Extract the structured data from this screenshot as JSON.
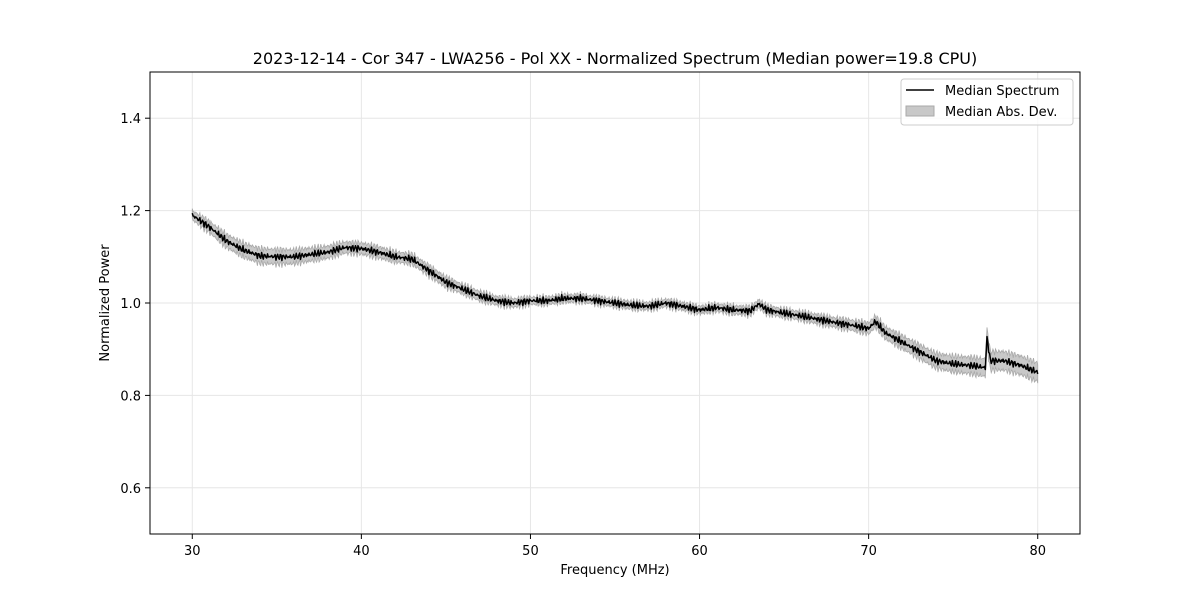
{
  "chart_data": {
    "type": "line",
    "title": "2023-12-14 - Cor 347 - LWA256 - Pol XX - Normalized Spectrum (Median power=19.8 CPU)",
    "xlabel": "Frequency (MHz)",
    "ylabel": "Normalized Power",
    "xlim": [
      27.5,
      82.5
    ],
    "ylim": [
      0.5,
      1.5
    ],
    "xticks": [
      30,
      40,
      50,
      60,
      70,
      80
    ],
    "xtick_labels": [
      "30",
      "40",
      "50",
      "60",
      "70",
      "80"
    ],
    "yticks": [
      0.6,
      0.8,
      1.0,
      1.2,
      1.4
    ],
    "ytick_labels": [
      "0.6",
      "0.8",
      "1.0",
      "1.2",
      "1.4"
    ],
    "grid": true,
    "legend_position": "top-right",
    "series": [
      {
        "name": "Median Spectrum",
        "color": "#000000",
        "x": [
          30,
          31,
          32,
          33,
          34,
          35,
          36,
          37,
          38,
          39,
          40,
          41,
          42,
          43,
          44,
          45,
          46,
          47,
          48,
          49,
          50,
          51,
          52,
          53,
          54,
          55,
          56,
          57,
          58,
          59,
          60,
          61,
          62,
          63,
          63.5,
          64,
          65,
          66,
          67,
          68,
          69,
          70,
          70.4,
          71,
          72,
          73,
          74,
          75,
          76,
          76.9,
          77.0,
          77.2,
          78,
          79,
          80
        ],
        "y": [
          1.19,
          1.165,
          1.135,
          1.115,
          1.102,
          1.1,
          1.1,
          1.105,
          1.11,
          1.12,
          1.118,
          1.11,
          1.1,
          1.095,
          1.07,
          1.045,
          1.03,
          1.015,
          1.005,
          1.0,
          1.005,
          1.005,
          1.01,
          1.01,
          1.005,
          1.0,
          0.995,
          0.993,
          1.0,
          0.993,
          0.985,
          0.99,
          0.985,
          0.983,
          0.998,
          0.985,
          0.978,
          0.972,
          0.965,
          0.958,
          0.952,
          0.945,
          0.96,
          0.935,
          0.915,
          0.895,
          0.875,
          0.868,
          0.865,
          0.86,
          0.925,
          0.875,
          0.875,
          0.865,
          0.85
        ]
      }
    ],
    "band": {
      "name": "Median Abs. Dev.",
      "color": "#c8c8c8",
      "edge": "#a9a9a9",
      "x": [
        30,
        31,
        32,
        33,
        34,
        35,
        36,
        37,
        38,
        39,
        40,
        41,
        42,
        43,
        44,
        45,
        46,
        47,
        48,
        49,
        50,
        51,
        52,
        53,
        54,
        55,
        56,
        57,
        58,
        59,
        60,
        61,
        62,
        63,
        63.5,
        64,
        65,
        66,
        67,
        68,
        69,
        70,
        70.4,
        71,
        72,
        73,
        74,
        75,
        76,
        76.9,
        77.0,
        77.2,
        78,
        79,
        80
      ],
      "halfwidth": [
        0.01,
        0.012,
        0.014,
        0.015,
        0.016,
        0.016,
        0.015,
        0.014,
        0.013,
        0.012,
        0.012,
        0.012,
        0.011,
        0.011,
        0.011,
        0.011,
        0.01,
        0.01,
        0.009,
        0.009,
        0.008,
        0.008,
        0.008,
        0.008,
        0.008,
        0.008,
        0.008,
        0.008,
        0.008,
        0.008,
        0.008,
        0.008,
        0.009,
        0.009,
        0.009,
        0.009,
        0.009,
        0.009,
        0.01,
        0.01,
        0.011,
        0.012,
        0.012,
        0.013,
        0.014,
        0.015,
        0.016,
        0.017,
        0.018,
        0.019,
        0.02,
        0.02,
        0.02,
        0.02,
        0.02
      ]
    }
  },
  "legend": {
    "line_label": "Median Spectrum",
    "band_label": "Median Abs. Dev."
  }
}
